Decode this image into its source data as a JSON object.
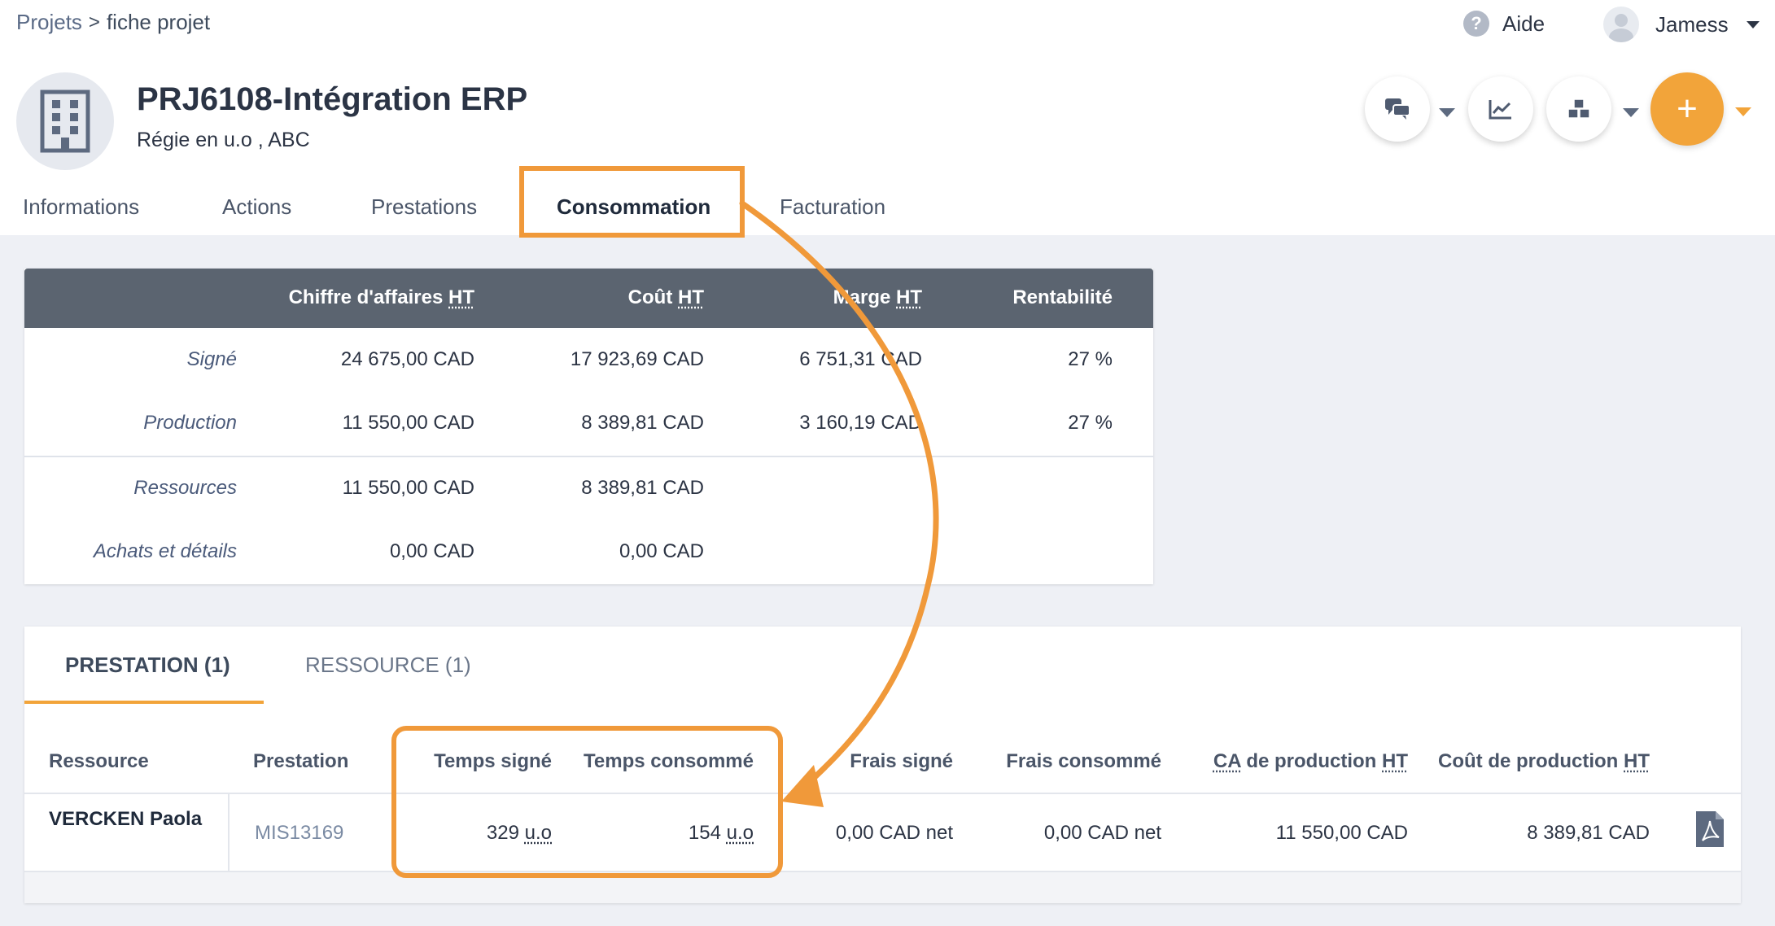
{
  "breadcrumb": {
    "root": "Projets",
    "separator": ">",
    "current": "fiche projet"
  },
  "topbar": {
    "help_label": "Aide",
    "user_name": "Jamess"
  },
  "project": {
    "title": "PRJ6108-Intégration ERP",
    "subtitle_prefix": "Régie en u.o ,",
    "subtitle_client": "ABC"
  },
  "actions": {
    "add_label": "+"
  },
  "tabs": [
    {
      "label": "Informations"
    },
    {
      "label": "Actions"
    },
    {
      "label": "Prestations"
    },
    {
      "label": "Consommation",
      "active": true
    },
    {
      "label": "Facturation"
    }
  ],
  "summary": {
    "headers": {
      "revenue_prefix": "Chiffre d'affaires",
      "cost_prefix": "Coût",
      "margin_prefix": "Marge",
      "ht": "HT",
      "profitability": "Rentabilité"
    },
    "rows": [
      {
        "label": "Signé",
        "revenue": "24 675,00 CAD",
        "cost": "17 923,69 CAD",
        "margin": "6 751,31 CAD",
        "profitability": "27 %"
      },
      {
        "label": "Production",
        "revenue": "11 550,00 CAD",
        "cost": "8 389,81 CAD",
        "margin": "3 160,19 CAD",
        "profitability": "27 %"
      },
      {
        "label": "Ressources",
        "revenue": "11 550,00 CAD",
        "cost": "8 389,81 CAD"
      },
      {
        "label": "Achats et détails",
        "revenue": "0,00 CAD",
        "cost": "0,00 CAD"
      }
    ]
  },
  "detail": {
    "tabs": [
      {
        "label": "PRESTATION (1)",
        "active": true
      },
      {
        "label": "RESSOURCE (1)"
      }
    ],
    "columns": {
      "resource": "Ressource",
      "prestation": "Prestation",
      "time_signed": "Temps signé",
      "time_consumed": "Temps consommé",
      "fees_signed": "Frais signé",
      "fees_consumed": "Frais consommé",
      "ca_prefix": "CA",
      "production_ca_suffix": "de production",
      "cost_prefix": "Coût de production",
      "ht": "HT"
    },
    "row": {
      "resource": "VERCKEN Paola",
      "prestation": "MIS13169",
      "time_signed_value": "329",
      "time_consumed_value": "154",
      "unit": "u.o",
      "fees_signed": "0,00 CAD net",
      "fees_consumed": "0,00 CAD net",
      "production_ca": "11 550,00 CAD",
      "production_cost": "8 389,81 CAD"
    }
  },
  "colors": {
    "accent": "#f2a43a",
    "annotation": "#f0993a",
    "table_header": "#5b6470",
    "background": "#eef0f5"
  },
  "icons": [
    "chat-icon",
    "chart-icon",
    "cubes-icon",
    "plus-icon",
    "help-icon",
    "building-icon",
    "pdf-icon"
  ]
}
